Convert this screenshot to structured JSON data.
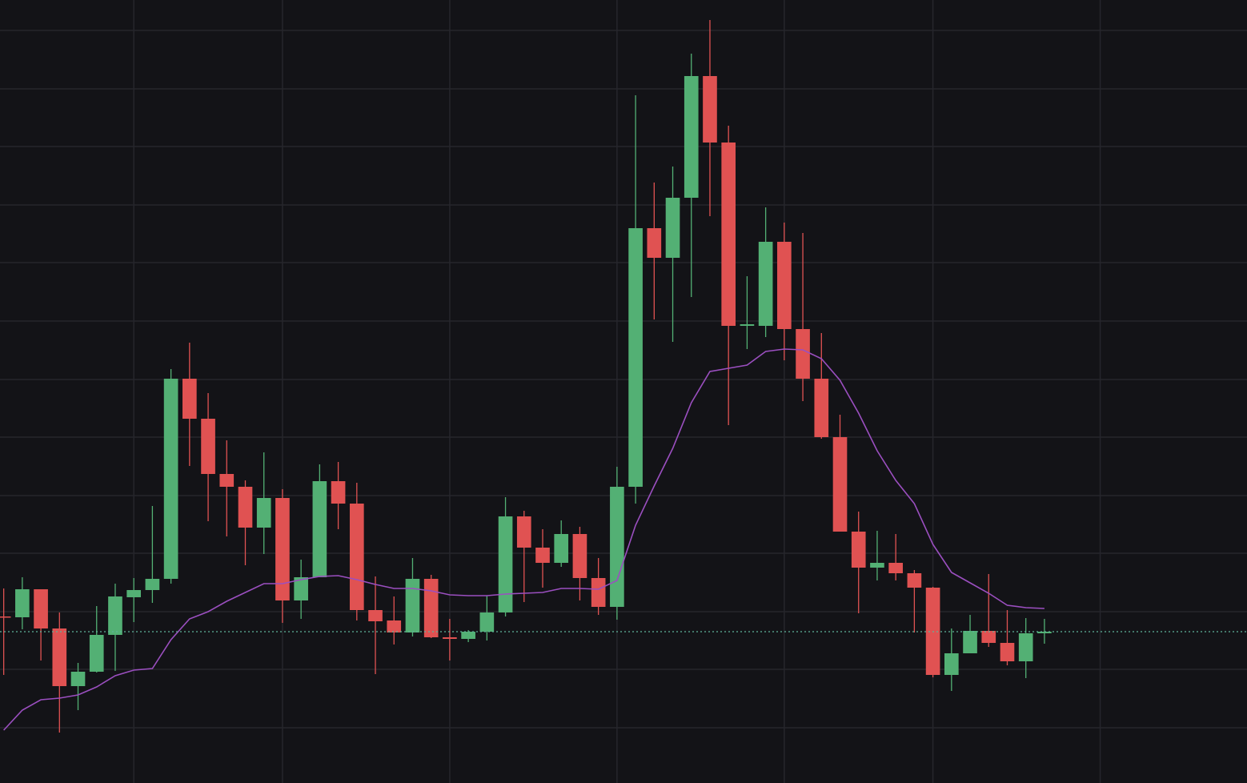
{
  "chart_data": {
    "type": "candlestick",
    "x": [
      0,
      1,
      2,
      3,
      4,
      5,
      6,
      7,
      8,
      9,
      10,
      11,
      12,
      13,
      14,
      15,
      16,
      17,
      18,
      19,
      20,
      21,
      22,
      23,
      24,
      25,
      26,
      27,
      28,
      29,
      30,
      31,
      32,
      33,
      34,
      35,
      36,
      37,
      38,
      39,
      40,
      41,
      42,
      43,
      44,
      45,
      46,
      47,
      48,
      49,
      50,
      51,
      52,
      53,
      54,
      55,
      56
    ],
    "open": [
      208,
      207,
      242,
      193,
      121,
      139,
      185,
      232,
      241,
      255,
      505,
      455,
      386,
      370,
      319,
      356,
      228,
      257,
      377,
      349,
      216,
      203,
      188,
      255,
      182,
      180,
      189,
      213,
      333,
      294,
      275,
      311,
      256,
      220,
      370,
      693,
      656,
      731,
      883,
      800,
      571,
      571,
      676,
      567,
      505,
      432,
      314,
      269,
      275,
      262,
      244,
      135,
      162,
      190,
      175,
      152,
      187
    ],
    "high": [
      243,
      257,
      242,
      213,
      150,
      221,
      249,
      256,
      346,
      517,
      550,
      487,
      428,
      378,
      413,
      367,
      279,
      398,
      401,
      375,
      258,
      233,
      281,
      260,
      205,
      191,
      234,
      357,
      340,
      317,
      328,
      320,
      281,
      395,
      859,
      750,
      770,
      911,
      953,
      821,
      633,
      719,
      700,
      687,
      562,
      460,
      339,
      315,
      311,
      266,
      245,
      193,
      210,
      261,
      216,
      206,
      205
    ],
    "low": [
      135,
      192,
      153,
      63,
      91,
      138,
      140,
      201,
      225,
      249,
      396,
      327,
      308,
      272,
      286,
      200,
      205,
      257,
      317,
      203,
      136,
      173,
      183,
      181,
      153,
      176,
      178,
      208,
      226,
      244,
      270,
      228,
      210,
      204,
      349,
      579,
      551,
      607,
      708,
      447,
      542,
      557,
      528,
      477,
      430,
      314,
      212,
      253,
      253,
      188,
      132,
      115,
      162,
      170,
      147,
      131,
      174
    ],
    "close": [
      207,
      242,
      193,
      121,
      139,
      185,
      233,
      241,
      255,
      505,
      455,
      386,
      370,
      319,
      356,
      228,
      257,
      377,
      349,
      216,
      202,
      188,
      255,
      182,
      180,
      189,
      213,
      333,
      294,
      275,
      311,
      256,
      220,
      370,
      693,
      656,
      731,
      883,
      800,
      571,
      573,
      676,
      567,
      505,
      432,
      314,
      269,
      275,
      262,
      244,
      135,
      162,
      190,
      175,
      152,
      187,
      189
    ],
    "up_color": "#53b074",
    "down_color": "#e05252",
    "moving_average": {
      "color": "#9b4fc0",
      "values": [
        66,
        91,
        104,
        106,
        110,
        120,
        134,
        141,
        143,
        179,
        205,
        214,
        227,
        238,
        249,
        249,
        254,
        258,
        259,
        254,
        248,
        243,
        243,
        240,
        235,
        234,
        234,
        236,
        237,
        238,
        243,
        243,
        242,
        253,
        322,
        371,
        418,
        475,
        514,
        518,
        522,
        539,
        542,
        541,
        530,
        503,
        462,
        415,
        378,
        349,
        298,
        263,
        250,
        237,
        222,
        219,
        218
      ]
    },
    "last_price": {
      "value": 189,
      "color": "#5fb39a"
    },
    "xlim": [
      -0.2,
      66.9
    ],
    "ylim": [
      0,
      978
    ],
    "xticks": [
      7,
      15,
      24,
      33,
      42,
      50,
      59
    ],
    "yticks": [
      69,
      142,
      214,
      287,
      359,
      432,
      504,
      577,
      650,
      722,
      795,
      867,
      940
    ],
    "grid": true
  }
}
